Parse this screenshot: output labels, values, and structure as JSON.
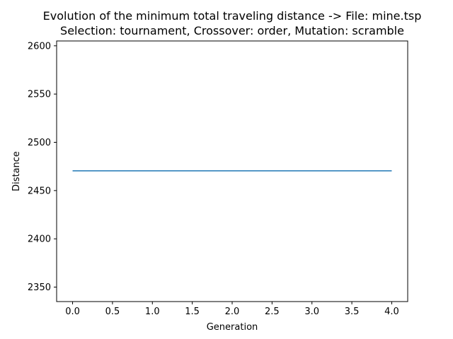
{
  "chart_data": {
    "type": "line",
    "title": "Evolution of the minimum total traveling distance -> File: mine.tsp",
    "subtitle": "Selection: tournament, Crossover: order, Mutation: scramble",
    "xlabel": "Generation",
    "ylabel": "Distance",
    "x": [
      0,
      1,
      2,
      3,
      4
    ],
    "series": [
      {
        "values": [
          2470.5,
          2470.5,
          2470.5,
          2470.5,
          2470.5
        ],
        "color": "#1f77b4"
      }
    ],
    "xlim": [
      -0.2,
      4.2
    ],
    "ylim": [
      2335,
      2605
    ],
    "xticks": [
      0,
      0.5,
      1,
      1.5,
      2,
      2.5,
      3,
      3.5,
      4
    ],
    "xtick_labels": [
      "0.0",
      "0.5",
      "1.0",
      "1.5",
      "2.0",
      "2.5",
      "3.0",
      "3.5",
      "4.0"
    ],
    "yticks": [
      2350,
      2400,
      2450,
      2500,
      2550,
      2600
    ],
    "ytick_labels": [
      "2350",
      "2400",
      "2450",
      "2500",
      "2550",
      "2600"
    ],
    "grid": false,
    "legend": "none"
  }
}
